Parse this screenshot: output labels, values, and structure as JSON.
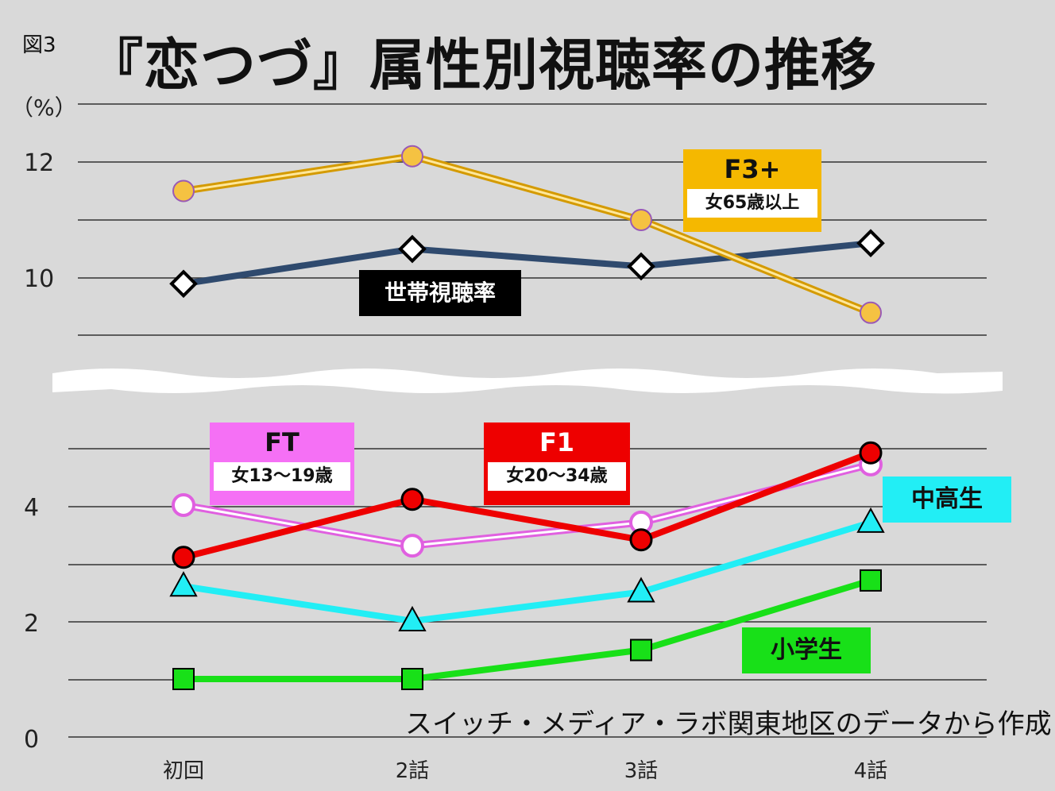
{
  "figure_label": "図3",
  "unit_label": "（%）",
  "source_note": "スイッチ・メディア・ラボ関東地区のデータから作成",
  "colors": {
    "background": "#d9d9d9",
    "household": "#2f4a6e",
    "f3plus": "#f5c242",
    "ft": "#e060e0",
    "f1": "#ee0000",
    "chukosei": "#22eef5",
    "shogakusei": "#18e018"
  },
  "legend": {
    "household": "世帯視聴率",
    "f3plus_main": "F3+",
    "f3plus_sub": "女65歳以上",
    "ft_main": "FT",
    "ft_sub": "女13～19歳",
    "f1_main": "F1",
    "f1_sub": "女20～34歳",
    "chukosei": "中高生",
    "shogakusei": "小学生"
  },
  "chart_data": {
    "type": "line",
    "title": "『恋つづ』属性別視聴率の推移",
    "categories": [
      "初回",
      "2話",
      "3話",
      "4話"
    ],
    "ylabel": "（%）",
    "y_ticks_lower": [
      "0",
      "2",
      "4"
    ],
    "y_ticks_upper": [
      "10",
      "12"
    ],
    "axis_break": true,
    "ylim_lower": [
      0,
      5.5
    ],
    "ylim_upper": [
      9,
      13
    ],
    "grid": true,
    "series": [
      {
        "name": "世帯視聴率",
        "key": "household",
        "marker": "diamond",
        "values": [
          9.9,
          10.5,
          10.2,
          10.6
        ]
      },
      {
        "name": "F3+",
        "key": "f3plus",
        "marker": "circle",
        "values": [
          11.5,
          12.1,
          11.0,
          9.4
        ]
      },
      {
        "name": "FT",
        "key": "ft",
        "marker": "circle",
        "values": [
          4.0,
          3.3,
          3.7,
          4.7
        ]
      },
      {
        "name": "F1",
        "key": "f1",
        "marker": "circle",
        "values": [
          3.1,
          4.1,
          3.4,
          4.9
        ]
      },
      {
        "name": "中高生",
        "key": "chukosei",
        "marker": "triangle",
        "values": [
          2.6,
          2.0,
          2.5,
          3.7
        ]
      },
      {
        "name": "小学生",
        "key": "shogakusei",
        "marker": "square",
        "values": [
          1.0,
          1.0,
          1.5,
          2.7
        ]
      }
    ]
  }
}
